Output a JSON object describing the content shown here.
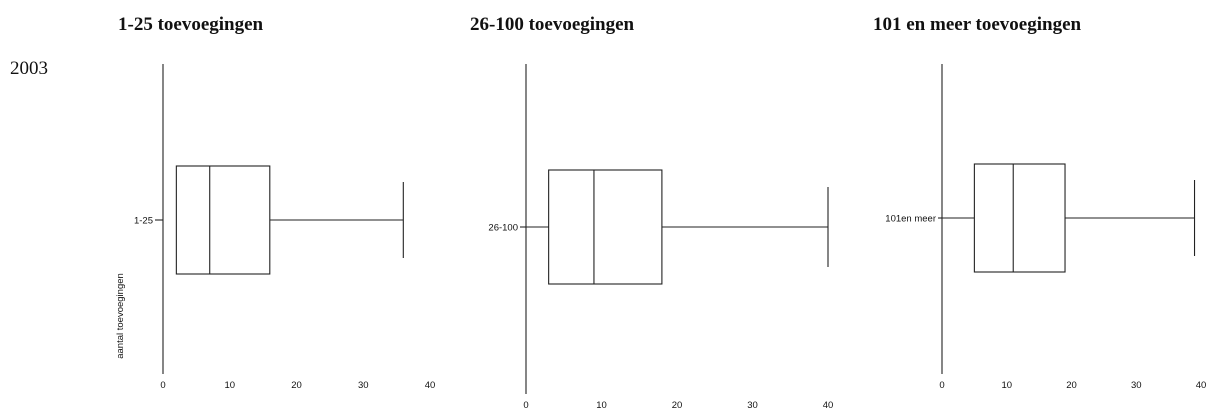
{
  "year_label": "2003",
  "chart_data": [
    {
      "type": "boxplot",
      "title": "1-25 toevoegingen",
      "category": "1-25",
      "ylabel": "aantal toevoegingen",
      "xticks": [
        0,
        10,
        20,
        30,
        40
      ],
      "xlim": [
        0,
        40
      ],
      "whisker_low": 2,
      "q1": 2,
      "median": 7,
      "q3": 16,
      "whisker_high": 36
    },
    {
      "type": "boxplot",
      "title": "26-100 toevoegingen",
      "category": "26-100",
      "xticks": [
        0,
        10,
        20,
        30,
        40
      ],
      "xlim": [
        0,
        40
      ],
      "whisker_low": 0,
      "q1": 3,
      "median": 9,
      "q3": 18,
      "whisker_high": 40
    },
    {
      "type": "boxplot",
      "title": "101 en meer toevoegingen",
      "category": "101en meer",
      "xticks": [
        0,
        10,
        20,
        30,
        40
      ],
      "xlim": [
        0,
        40
      ],
      "whisker_low": 0,
      "q1": 5,
      "median": 11,
      "q3": 19,
      "whisker_high": 39
    }
  ]
}
